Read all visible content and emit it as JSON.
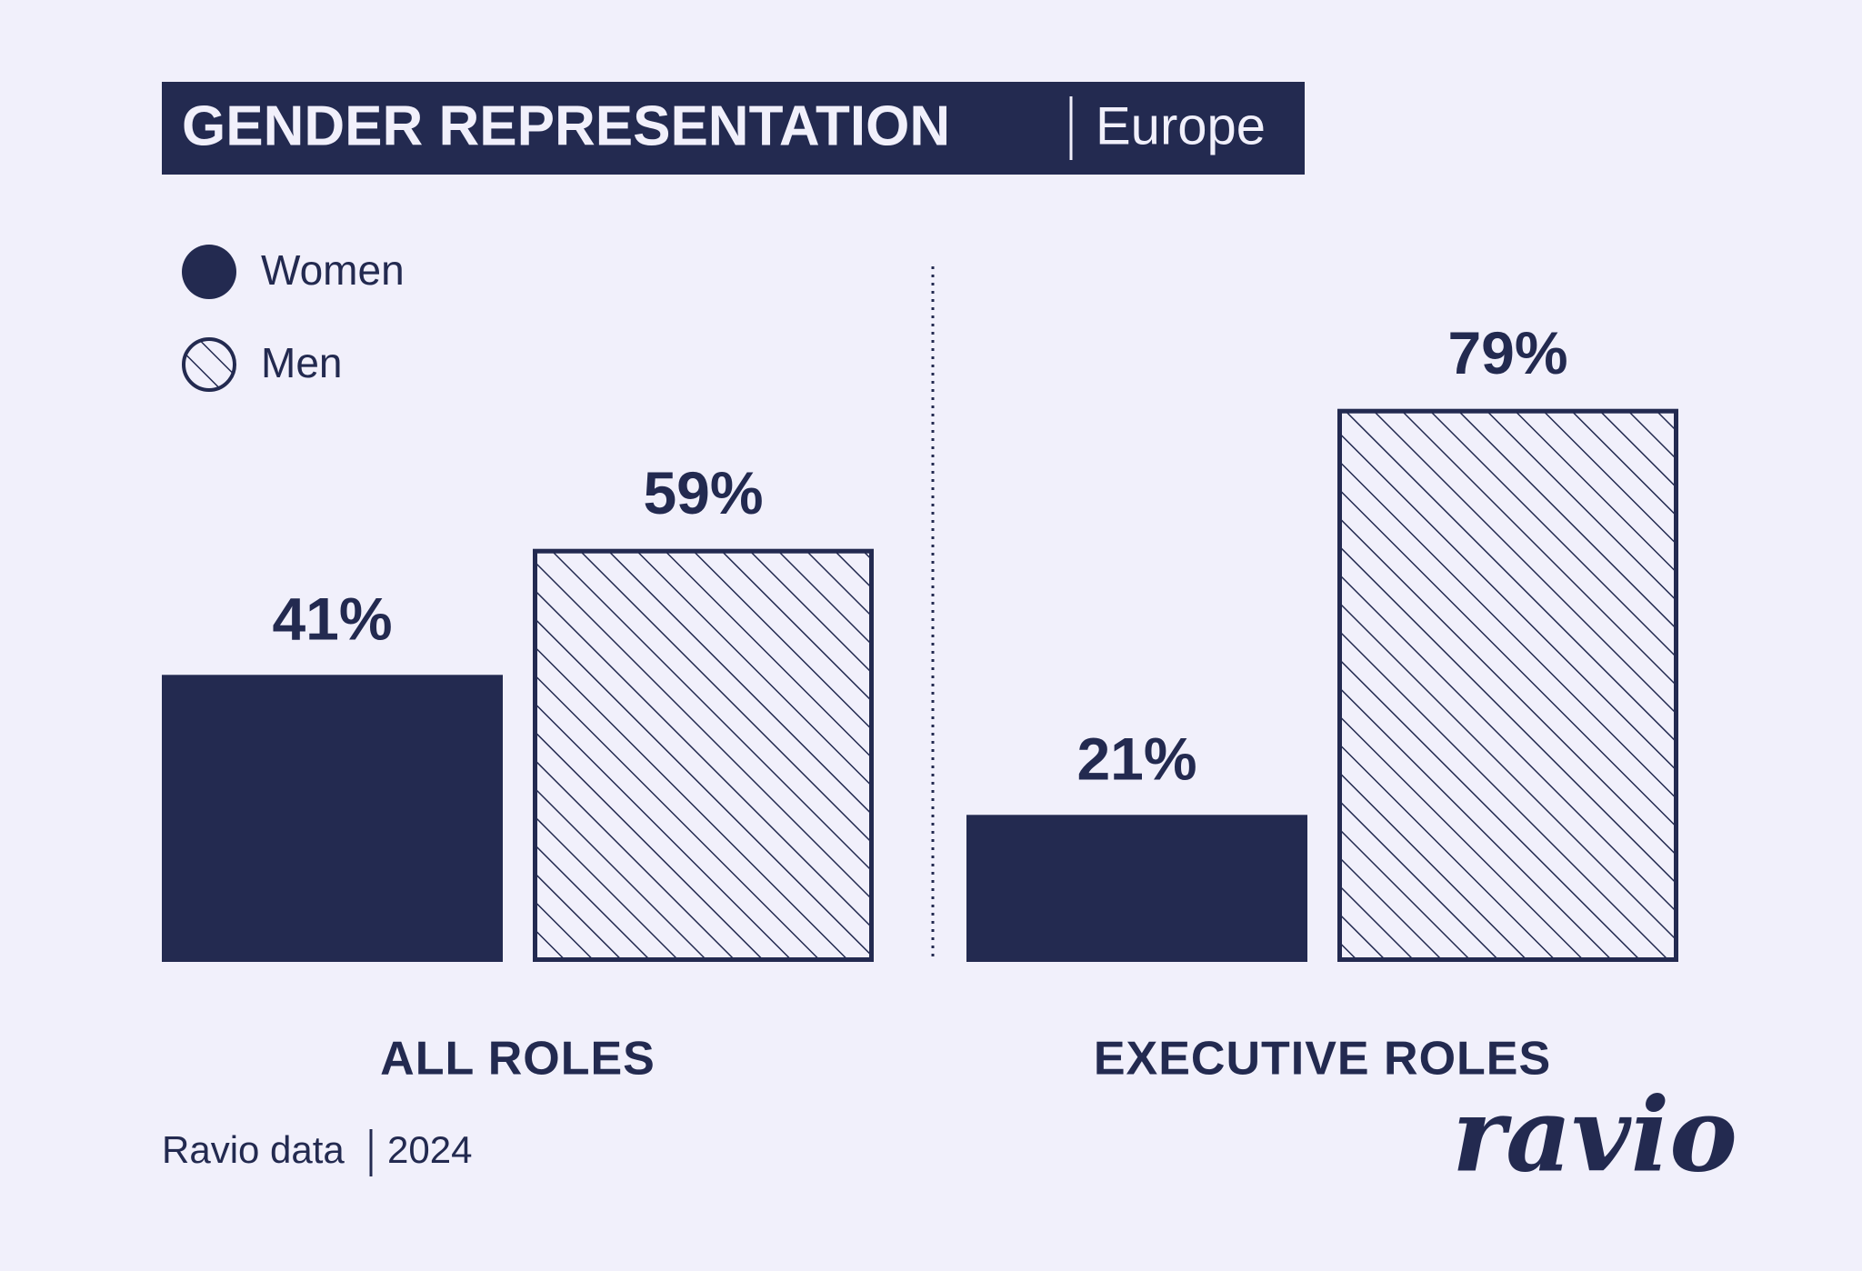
{
  "chart_data": {
    "type": "bar",
    "title": "GENDER REPRESENTATION",
    "subtitle": "Europe",
    "categories": [
      "ALL ROLES",
      "EXECUTIVE ROLES"
    ],
    "series": [
      {
        "name": "Women",
        "color": "#232a50",
        "pattern": "solid",
        "values": [
          41,
          21
        ],
        "value_labels": [
          "41%",
          "21%"
        ]
      },
      {
        "name": "Men",
        "color": "#232a50",
        "pattern": "hatch",
        "values": [
          59,
          79
        ],
        "value_labels": [
          "59%",
          "79%"
        ]
      }
    ],
    "source": "Ravio data",
    "year": "2024",
    "brand": "ravio"
  }
}
